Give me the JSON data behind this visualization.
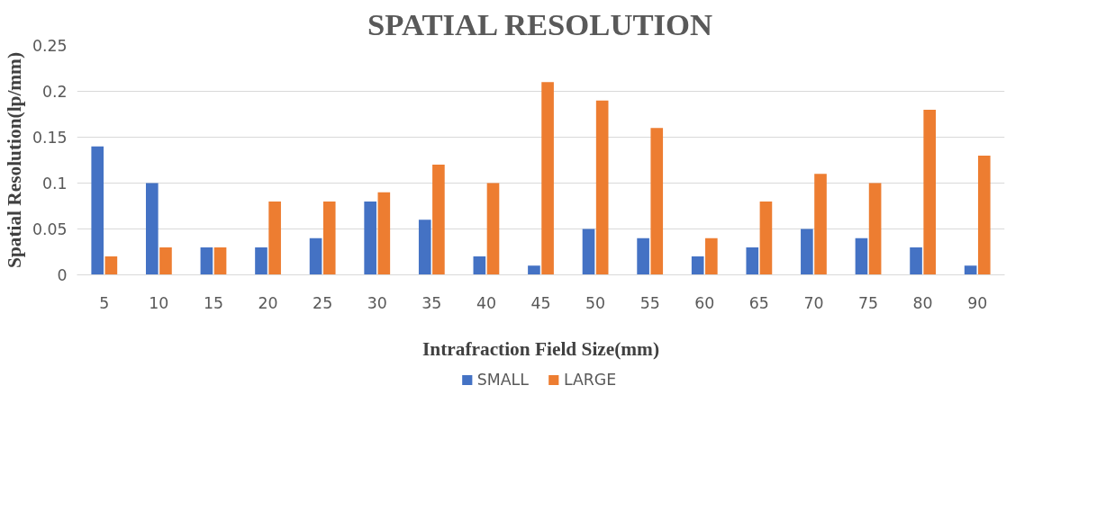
{
  "chart_data": {
    "type": "bar",
    "title": "SPATIAL RESOLUTION",
    "xlabel": "Intrafraction Field Size(mm)",
    "ylabel": "Spatial Resolution(lp/mm)",
    "categories": [
      "5",
      "10",
      "15",
      "20",
      "25",
      "30",
      "35",
      "40",
      "45",
      "50",
      "55",
      "60",
      "65",
      "70",
      "75",
      "80",
      "90"
    ],
    "series": [
      {
        "name": "SMALL",
        "color": "#4472c4",
        "values": [
          0.14,
          0.1,
          0.03,
          0.03,
          0.04,
          0.08,
          0.06,
          0.02,
          0.01,
          0.05,
          0.04,
          0.02,
          0.03,
          0.05,
          0.04,
          0.03,
          0.01
        ]
      },
      {
        "name": "LARGE",
        "color": "#ed7d31",
        "values": [
          0.02,
          0.03,
          0.03,
          0.08,
          0.08,
          0.09,
          0.12,
          0.1,
          0.21,
          0.19,
          0.16,
          0.04,
          0.08,
          0.11,
          0.1,
          0.18,
          0.13
        ]
      }
    ],
    "ylim": [
      0,
      0.25
    ],
    "yticks": [
      0,
      0.05,
      0.1,
      0.15,
      0.2,
      0.25
    ],
    "grid": "y",
    "legend": "bottom"
  }
}
